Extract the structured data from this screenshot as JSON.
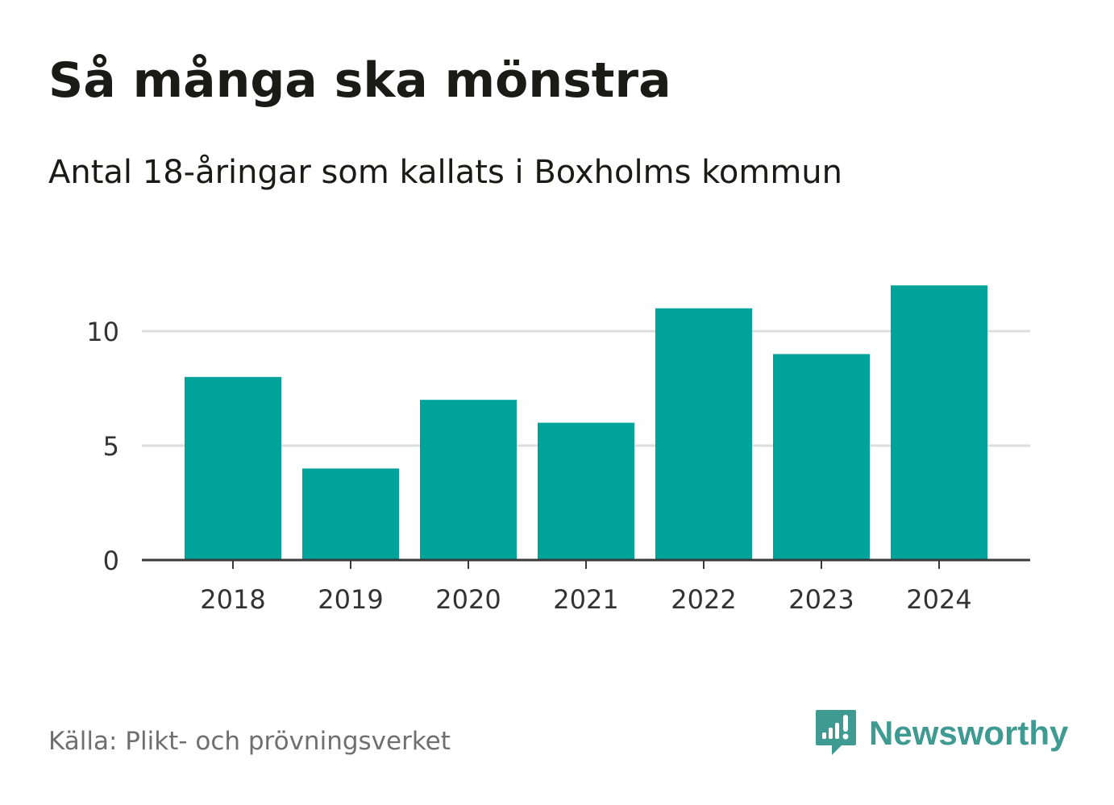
{
  "header": {
    "title": "Så många ska mönstra",
    "subtitle": "Antal 18-åringar som kallats i Boxholms kommun"
  },
  "footer": {
    "source": "Källa: Plikt- och prövningsverket",
    "brand": "Newsworthy",
    "brand_icon": "newsworthy-logo-icon"
  },
  "colors": {
    "bar": "#00a39a",
    "grid": "#dddddd",
    "axis": "#3a3a3a",
    "brand": "#3f9a92"
  },
  "chart_data": {
    "type": "bar",
    "title": "Så många ska mönstra",
    "subtitle": "Antal 18-åringar som kallats i Boxholms kommun",
    "categories": [
      "2018",
      "2019",
      "2020",
      "2021",
      "2022",
      "2023",
      "2024"
    ],
    "values": [
      8,
      4,
      7,
      6,
      11,
      9,
      12
    ],
    "yticks": [
      "0",
      "5",
      "10"
    ],
    "ylim": [
      0,
      12
    ],
    "xlabel": "",
    "ylabel": "",
    "grid": true
  }
}
